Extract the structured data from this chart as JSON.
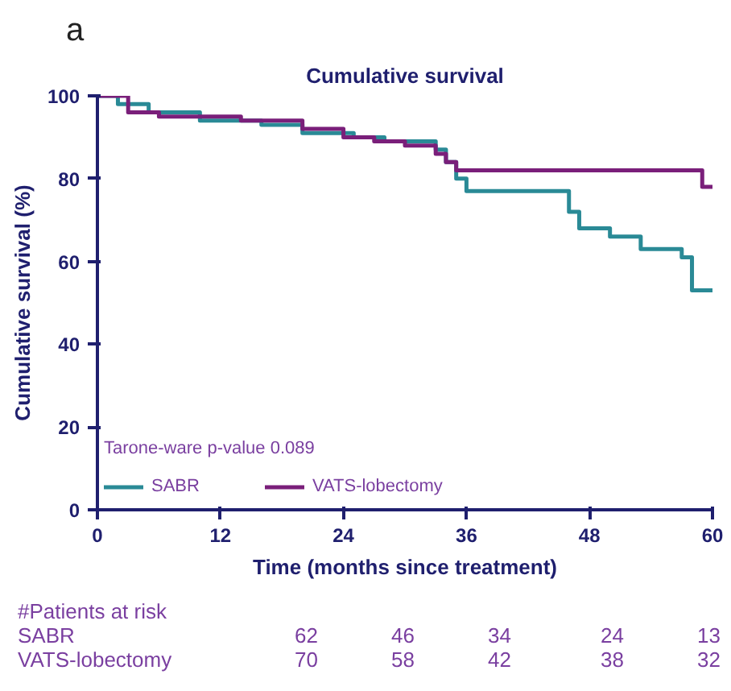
{
  "chart_data": {
    "type": "step",
    "title": "Cumulative survival",
    "xlabel": "Time (months since treatment)",
    "ylabel": "Cumulative survival (%)",
    "series": [
      {
        "name": "SABR",
        "color": "#2a8a96",
        "x": [
          0,
          2,
          5,
          10,
          16,
          20,
          25,
          28,
          33,
          34,
          35,
          36,
          45,
          46,
          47,
          50,
          53,
          57,
          58,
          60
        ],
        "values": [
          100,
          98,
          96,
          94,
          93,
          91,
          90,
          89,
          87,
          84,
          80,
          77,
          77,
          72,
          68,
          66,
          63,
          61,
          53,
          53
        ]
      },
      {
        "name": "VATS-lobectomy",
        "color": "#7a1f7a",
        "x": [
          0,
          3,
          6,
          14,
          20,
          24,
          27,
          30,
          33,
          34,
          35,
          36,
          58,
          59,
          60
        ],
        "values": [
          100,
          96,
          95,
          94,
          92,
          90,
          89,
          88,
          86,
          84,
          82,
          82,
          82,
          78,
          78
        ]
      }
    ],
    "xlim": [
      0,
      60
    ],
    "xticks": [
      0,
      12,
      24,
      36,
      48,
      60
    ],
    "ylim": [
      0,
      100
    ],
    "yticks": [
      0,
      20,
      40,
      60,
      80,
      100
    ],
    "grid": false,
    "legend": "bottom left",
    "marker": "none",
    "line_style": "solid",
    "annotations": [
      "a",
      "Tarone-ware p-value 0.089",
      "#Patients at risk",
      "SABR 62 46 34 24 13",
      "VATS-lobectomy 70 58 42 38 32"
    ]
  }
}
